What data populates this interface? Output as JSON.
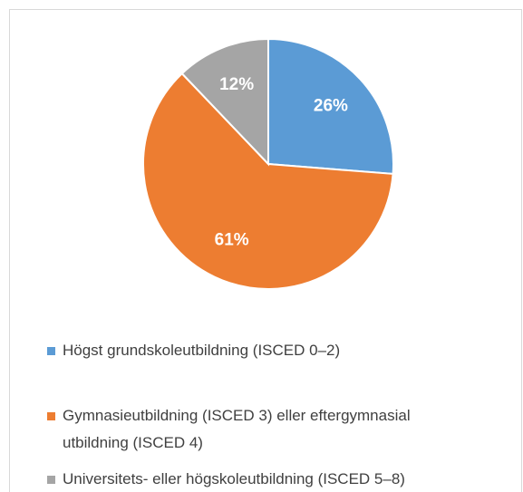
{
  "chart_data": {
    "type": "pie",
    "categories": [
      "Högst grundskoleutbildning (ISCED 0–2)",
      "Gymnasieutbildning (ISCED 3) eller eftergymnasial utbildning (ISCED 4)",
      "Universitets- eller högskoleutbildning (ISCED 5–8)"
    ],
    "values": [
      26,
      61,
      12
    ],
    "value_labels": [
      "26%",
      "61%",
      "12%"
    ],
    "colors": [
      "#5b9bd5",
      "#ed7d31",
      "#a5a5a5"
    ],
    "legend": "bottom"
  }
}
